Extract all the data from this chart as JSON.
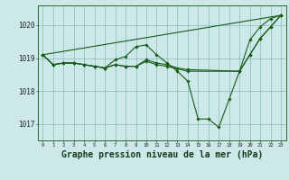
{
  "background_color": "#cce8e8",
  "grid_color": "#88bbbb",
  "line_color": "#1a5c1a",
  "marker_color": "#1a5c1a",
  "xlabel": "Graphe pression niveau de la mer (hPa)",
  "xlabel_fontsize": 7,
  "ylabel_ticks": [
    1017,
    1018,
    1019,
    1020
  ],
  "xlim": [
    -0.5,
    23.5
  ],
  "ylim": [
    1016.5,
    1020.6
  ],
  "line1_x": [
    0,
    1,
    2,
    3,
    4,
    5,
    6,
    7,
    8,
    9,
    10,
    11,
    12,
    13,
    14,
    15,
    16,
    17,
    18,
    19,
    20,
    21,
    22,
    23
  ],
  "line1_y": [
    1019.1,
    1018.8,
    1018.85,
    1018.85,
    1018.8,
    1018.75,
    1018.7,
    1018.95,
    1019.05,
    1019.35,
    1019.4,
    1019.1,
    1018.85,
    1018.6,
    1018.3,
    1017.15,
    1017.15,
    1016.9,
    1017.75,
    1018.6,
    1019.55,
    1019.95,
    1020.2,
    1020.3
  ],
  "line2_x": [
    0,
    23
  ],
  "line2_y": [
    1019.1,
    1020.3
  ],
  "line3_x": [
    0,
    1,
    2,
    3,
    4,
    5,
    6,
    7,
    8,
    9,
    10,
    11,
    12,
    13,
    14,
    19,
    20,
    21,
    22,
    23
  ],
  "line3_y": [
    1019.1,
    1018.8,
    1018.85,
    1018.85,
    1018.8,
    1018.75,
    1018.7,
    1018.8,
    1018.75,
    1018.75,
    1018.95,
    1018.85,
    1018.8,
    1018.7,
    1018.65,
    1018.6,
    1019.1,
    1019.6,
    1019.95,
    1020.3
  ],
  "line4_x": [
    0,
    1,
    2,
    3,
    4,
    5,
    6,
    7,
    8,
    9,
    10,
    11,
    12,
    14,
    19,
    20,
    21,
    22,
    23
  ],
  "line4_y": [
    1019.1,
    1018.8,
    1018.85,
    1018.85,
    1018.8,
    1018.75,
    1018.7,
    1018.8,
    1018.75,
    1018.75,
    1018.9,
    1018.8,
    1018.75,
    1018.6,
    1018.6,
    1019.1,
    1019.6,
    1019.95,
    1020.3
  ]
}
